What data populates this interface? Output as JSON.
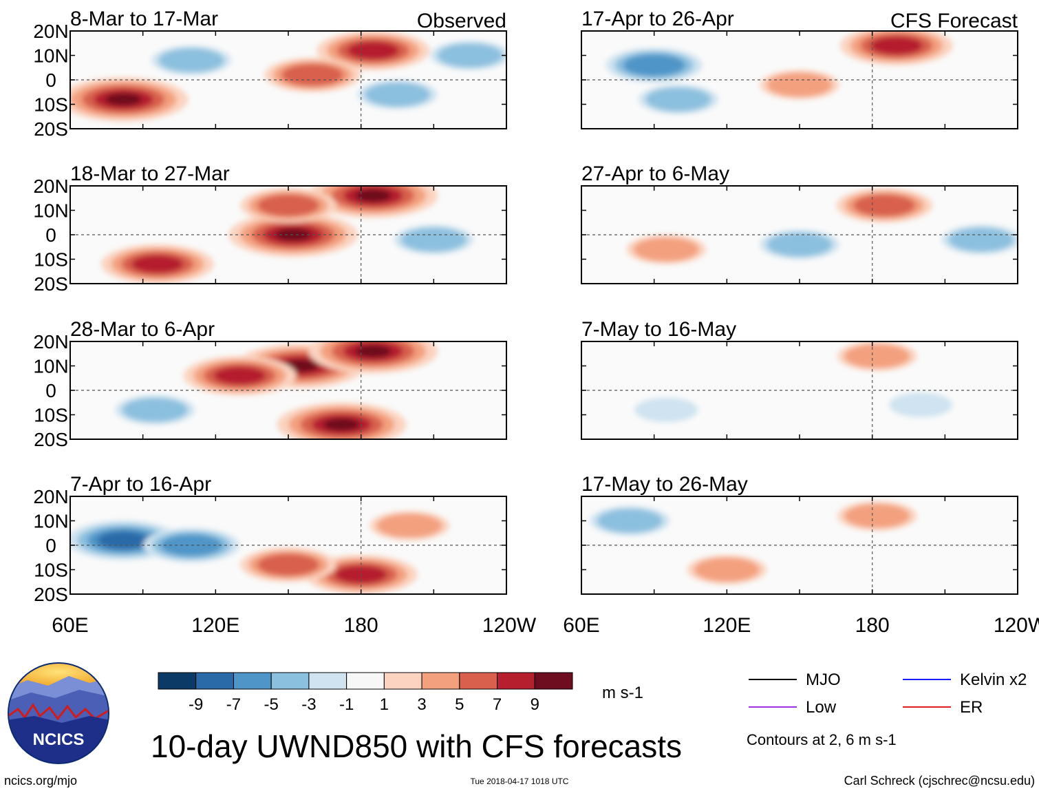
{
  "title": "10-day UWND850 with CFS forecasts",
  "logo": {
    "text": "NCICS",
    "url_text": "ncics.org/mjo"
  },
  "timestamp": "Tue 2018-04-17 1018 UTC",
  "author": "Carl Schreck (cjschrec@ncsu.edu)",
  "column_labels": {
    "observed": "Observed",
    "forecast": "CFS Forecast"
  },
  "colorbar": {
    "unit": "m s-1",
    "tick_labels": [
      "-9",
      "-7",
      "-5",
      "-3",
      "-1",
      "1",
      "3",
      "5",
      "7",
      "9"
    ],
    "colors": [
      "#0b3a66",
      "#2a6aa8",
      "#4f95c8",
      "#8cc0df",
      "#cfe3f0",
      "#f7f7f7",
      "#fbd3c0",
      "#f3a07f",
      "#d8604d",
      "#b51f2e",
      "#6d0d1f"
    ]
  },
  "legend": {
    "items": [
      {
        "label": "MJO",
        "color": "#000000"
      },
      {
        "label": "Kelvin x2",
        "color": "#1a1aff"
      },
      {
        "label": "Low",
        "color": "#9b30e6"
      },
      {
        "label": "ER",
        "color": "#e31a1c"
      }
    ],
    "note": "Contours at 2, 6 m s-1"
  },
  "axes": {
    "lat_labels": [
      "20N",
      "10N",
      "0",
      "10S",
      "20S"
    ],
    "lon_labels": [
      "60E",
      "120E",
      "180",
      "120W"
    ],
    "lon_range": [
      60,
      240
    ],
    "lat_range": [
      -20,
      20
    ]
  },
  "chart_data": [
    {
      "type": "heatmap",
      "panel": "observed",
      "title": "8-Mar to 17-Mar",
      "features": [
        {
          "lon": 82,
          "lat": -8,
          "value": 9
        },
        {
          "lon": 185,
          "lat": 12,
          "value": 7
        },
        {
          "lon": 160,
          "lat": 2,
          "value": 5
        },
        {
          "lon": 195,
          "lat": -6,
          "value": -3
        },
        {
          "lon": 110,
          "lat": 8,
          "value": -3
        },
        {
          "lon": 225,
          "lat": 10,
          "value": -3
        }
      ]
    },
    {
      "type": "heatmap",
      "panel": "observed",
      "title": "18-Mar to 27-Mar",
      "features": [
        {
          "lon": 185,
          "lat": 16,
          "value": 9
        },
        {
          "lon": 152,
          "lat": 0,
          "value": 9
        },
        {
          "lon": 96,
          "lat": -12,
          "value": 7
        },
        {
          "lon": 150,
          "lat": 12,
          "value": 5
        },
        {
          "lon": 210,
          "lat": -2,
          "value": -3
        }
      ]
    },
    {
      "type": "heatmap",
      "panel": "observed",
      "title": "28-Mar to 6-Apr",
      "features": [
        {
          "lon": 155,
          "lat": 10,
          "value": 9
        },
        {
          "lon": 185,
          "lat": 16,
          "value": 9
        },
        {
          "lon": 172,
          "lat": -14,
          "value": 9
        },
        {
          "lon": 130,
          "lat": 6,
          "value": 7
        },
        {
          "lon": 95,
          "lat": -8,
          "value": -3
        }
      ]
    },
    {
      "type": "heatmap",
      "panel": "observed",
      "title": "7-Apr to 16-Apr",
      "features": [
        {
          "lon": 82,
          "lat": 2,
          "value": -7
        },
        {
          "lon": 110,
          "lat": 0,
          "value": -5
        },
        {
          "lon": 180,
          "lat": -12,
          "value": 7
        },
        {
          "lon": 150,
          "lat": -8,
          "value": 5
        },
        {
          "lon": 200,
          "lat": 8,
          "value": 3
        }
      ]
    },
    {
      "type": "heatmap",
      "panel": "forecast",
      "title": "17-Apr to 26-Apr",
      "features": [
        {
          "lon": 190,
          "lat": 14,
          "value": 7
        },
        {
          "lon": 90,
          "lat": 6,
          "value": -5
        },
        {
          "lon": 150,
          "lat": -2,
          "value": 3
        },
        {
          "lon": 100,
          "lat": -8,
          "value": -3
        }
      ]
    },
    {
      "type": "heatmap",
      "panel": "forecast",
      "title": "27-Apr to 6-May",
      "features": [
        {
          "lon": 185,
          "lat": 12,
          "value": 5
        },
        {
          "lon": 95,
          "lat": -6,
          "value": 3
        },
        {
          "lon": 150,
          "lat": -4,
          "value": -3
        },
        {
          "lon": 225,
          "lat": -2,
          "value": -3
        }
      ]
    },
    {
      "type": "heatmap",
      "panel": "forecast",
      "title": "7-May to 16-May",
      "features": [
        {
          "lon": 182,
          "lat": 14,
          "value": 3
        },
        {
          "lon": 95,
          "lat": -8,
          "value": -1
        },
        {
          "lon": 200,
          "lat": -6,
          "value": -1
        }
      ]
    },
    {
      "type": "heatmap",
      "panel": "forecast",
      "title": "17-May to 26-May",
      "features": [
        {
          "lon": 182,
          "lat": 12,
          "value": 3
        },
        {
          "lon": 80,
          "lat": 10,
          "value": -3
        },
        {
          "lon": 120,
          "lat": -10,
          "value": 3
        }
      ]
    }
  ]
}
